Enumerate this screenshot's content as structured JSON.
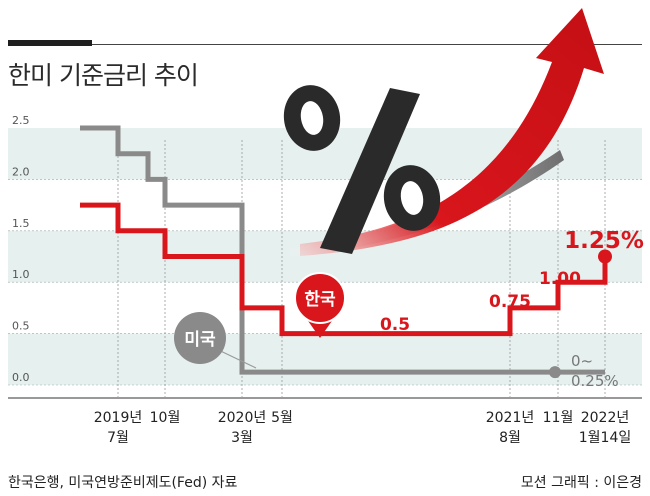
{
  "title": "한미 기준금리 추이",
  "source": "한국은행, 미국연방준비제도(Fed) 자료",
  "credit": "모션 그래픽 : 이은경",
  "colors": {
    "korea": "#d8161c",
    "us": "#8a8a8a",
    "band": "#e6f0ef",
    "arrow": "#d8161c",
    "percent_symbol": "#2a2a2a"
  },
  "decoration": {
    "percent_icon": "percent-icon",
    "arrow_icon": "rising-arrow-icon"
  },
  "chart_data": {
    "type": "line",
    "title": "한미 기준금리 추이",
    "ylim": [
      0,
      2.5
    ],
    "yticks": [
      "0.0",
      "0.5",
      "1.0",
      "1.5",
      "2.0",
      "2.5"
    ],
    "grid": "alternating horizontal bands",
    "xticks": [
      {
        "label": "2019년\n7월"
      },
      {
        "label": "10월"
      },
      {
        "label": "2020년\n3월"
      },
      {
        "label": "5월"
      },
      {
        "label": "2021년\n8월"
      },
      {
        "label": "11월"
      },
      {
        "label": "2022년\n1월14일"
      }
    ],
    "series": [
      {
        "name": "미국",
        "points": [
          {
            "x": "start",
            "y": 2.5
          },
          {
            "x": "2019-07",
            "y": 2.25
          },
          {
            "x": "2019-09",
            "y": 2.0
          },
          {
            "x": "2019-10",
            "y": 1.75
          },
          {
            "x": "2020-03",
            "y": 1.25
          },
          {
            "x": "2020-03",
            "y": 0.125
          },
          {
            "x": "2022-01-14",
            "y": 0.125
          }
        ],
        "end_label": "0~\n0.25%"
      },
      {
        "name": "한국",
        "points": [
          {
            "x": "start",
            "y": 1.75
          },
          {
            "x": "2019-07",
            "y": 1.5
          },
          {
            "x": "2019-10",
            "y": 1.25
          },
          {
            "x": "2020-03",
            "y": 0.75
          },
          {
            "x": "2020-05",
            "y": 0.5
          },
          {
            "x": "2021-08",
            "y": 0.75
          },
          {
            "x": "2021-11",
            "y": 1.0
          },
          {
            "x": "2022-01-14",
            "y": 1.25
          }
        ],
        "labels": [
          "0.5",
          "0.75",
          "1.00",
          "1.25%"
        ]
      }
    ]
  }
}
